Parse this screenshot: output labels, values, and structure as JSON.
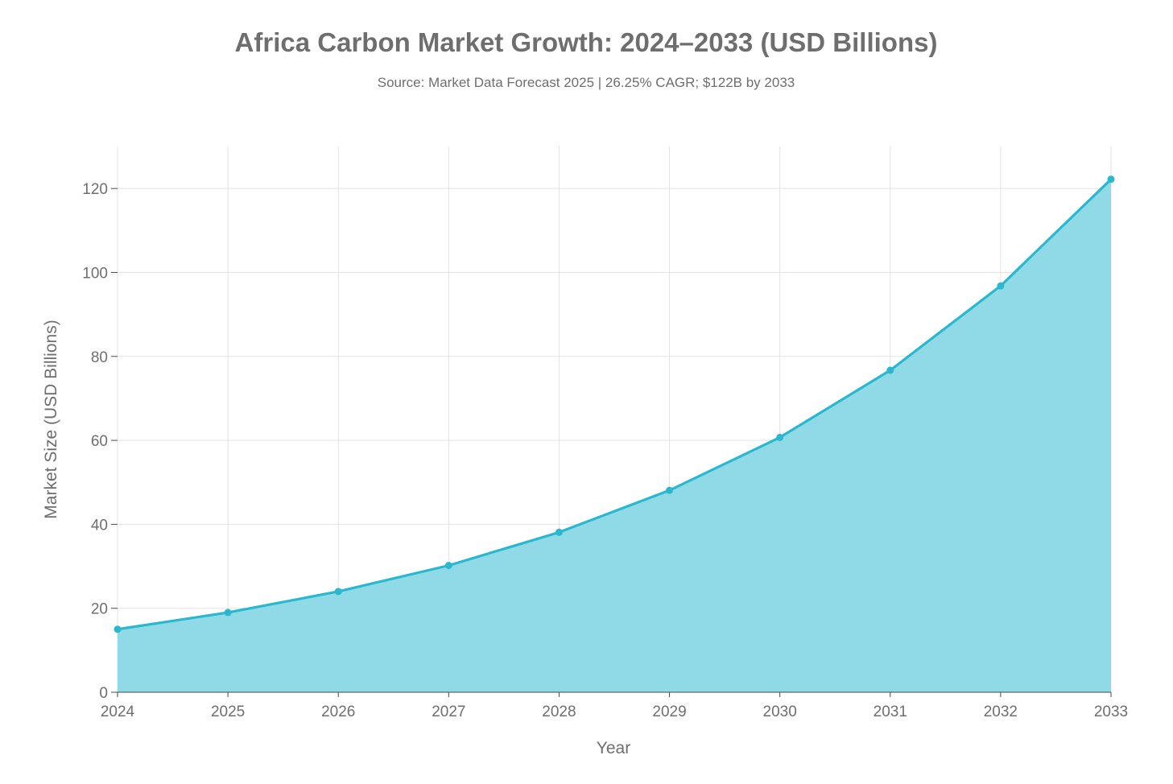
{
  "chart_data": {
    "type": "area",
    "title": "Africa Carbon Market Growth: 2024–2033 (USD Billions)",
    "subtitle": "Source: Market Data Forecast 2025 | 26.25% CAGR; $122B by 2033",
    "xlabel": "Year",
    "ylabel": "Market Size (USD Billions)",
    "x": [
      "2024",
      "2025",
      "2026",
      "2027",
      "2028",
      "2029",
      "2030",
      "2031",
      "2032",
      "2033"
    ],
    "x_tick_labels": [
      "2024",
      "2025",
      "2026",
      "2027",
      "2028",
      "2029",
      "2030",
      "2031",
      "2032",
      "2033"
    ],
    "series": [
      {
        "values": [
          15,
          19,
          24,
          30.2,
          38.1,
          48.1,
          60.7,
          76.7,
          96.8,
          122.2
        ]
      }
    ],
    "ylim": [
      0,
      130
    ],
    "y_ticks": [
      0,
      20,
      40,
      60,
      80,
      100,
      120
    ],
    "y_tick_labels": [
      "0",
      "20",
      "40",
      "60",
      "80",
      "100",
      "120"
    ],
    "grid": true,
    "legend": "none",
    "colors": {
      "line": "#2cb8cc",
      "fill": "#8fdae6",
      "grid": "#e3e3e3",
      "axis": "#4a4a4a",
      "text": "#6e6e6e"
    }
  }
}
